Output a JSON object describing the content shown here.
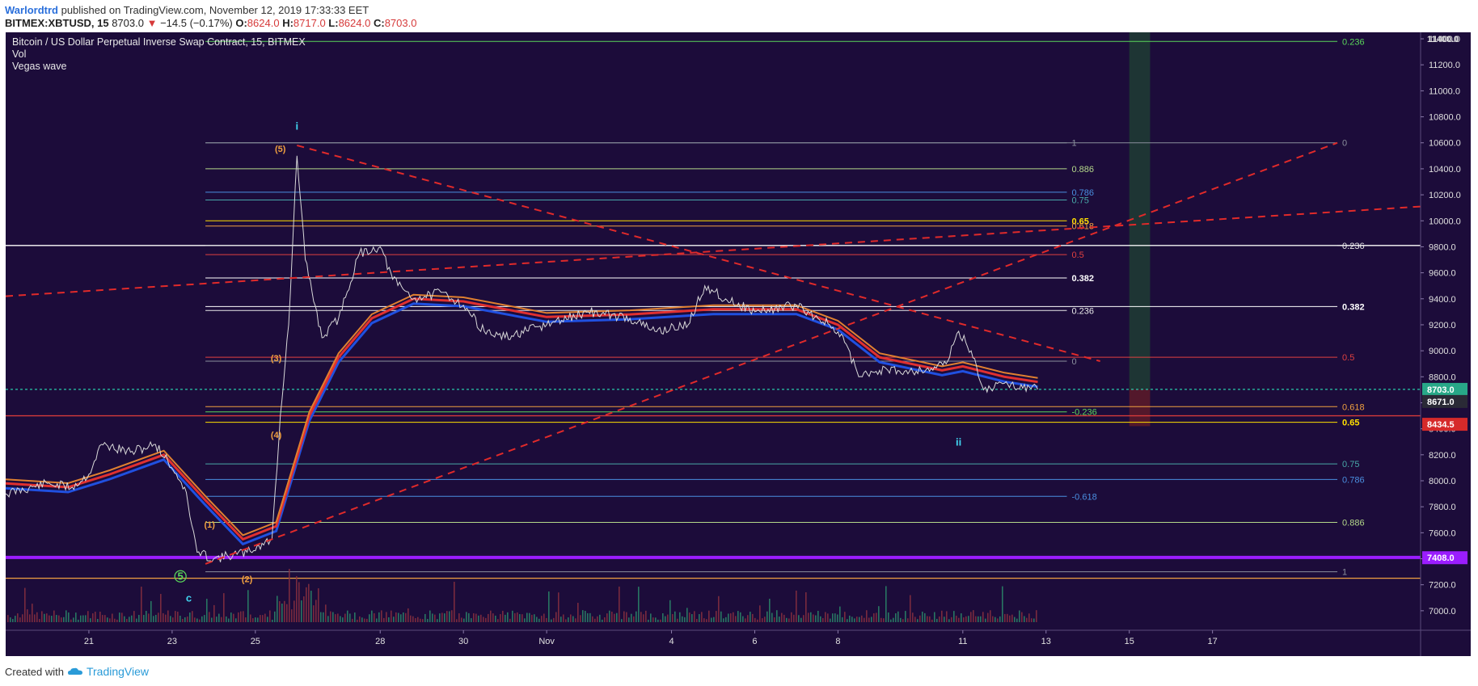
{
  "header": {
    "author": "Warlordtrd",
    "published_text": "published on TradingView.com, November 12, 2019 17:33:33 EET",
    "symbol": "BITMEX:XBTUSD, 15",
    "last": "8703.0",
    "change": "−14.5 (−0.17%)",
    "open_label": "O:",
    "open": "8624.0",
    "high_label": "H:",
    "high": "8717.0",
    "low_label": "L:",
    "low": "8624.0",
    "close_label": "C:",
    "close": "8703.0"
  },
  "legend": {
    "title": "Bitcoin / US Dollar Perpetual Inverse Swap Contract, 15, BITMEX",
    "study1": "Vol",
    "study2": "Vegas wave"
  },
  "footer": {
    "created_with": "Created with",
    "brand": "TradingView"
  },
  "chart_data": {
    "type": "candlestick",
    "ylim": [
      6850,
      11450
    ],
    "xlim": [
      "2019-10-19",
      "2019-11-22"
    ],
    "yticks": [
      7000,
      7200,
      7400,
      7600,
      7800,
      8000,
      8200,
      8400,
      8600,
      8800,
      9000,
      9200,
      9400,
      9600,
      9800,
      10000,
      10200,
      10400,
      10600,
      10800,
      11000,
      11200,
      11400
    ],
    "xticks": [
      {
        "date": "2019-10-21",
        "label": "21"
      },
      {
        "date": "2019-10-23",
        "label": "23"
      },
      {
        "date": "2019-10-25",
        "label": "25"
      },
      {
        "date": "2019-10-28",
        "label": "28"
      },
      {
        "date": "2019-10-30",
        "label": "30"
      },
      {
        "date": "2019-11-01",
        "label": "Nov"
      },
      {
        "date": "2019-11-04",
        "label": "4"
      },
      {
        "date": "2019-11-06",
        "label": "6"
      },
      {
        "date": "2019-11-08",
        "label": "8"
      },
      {
        "date": "2019-11-11",
        "label": "11"
      },
      {
        "date": "2019-11-13",
        "label": "13"
      },
      {
        "date": "2019-11-15",
        "label": "15"
      },
      {
        "date": "2019-11-17",
        "label": "17"
      }
    ],
    "price_path": [
      [
        "2019-10-19",
        7900
      ],
      [
        "2019-10-20",
        7980
      ],
      [
        "2019-10-20.6",
        7950
      ],
      [
        "2019-10-21",
        8050
      ],
      [
        "2019-10-21.3",
        8280
      ],
      [
        "2019-10-22",
        8220
      ],
      [
        "2019-10-22.6",
        8280
      ],
      [
        "2019-10-22.9",
        8150
      ],
      [
        "2019-10-23.3",
        7950
      ],
      [
        "2019-10-23.6",
        7450
      ],
      [
        "2019-10-24",
        7400
      ],
      [
        "2019-10-24.8",
        7450
      ],
      [
        "2019-10-25.4",
        7550
      ],
      [
        "2019-10-25.6",
        8500
      ],
      [
        "2019-10-25.8",
        9200
      ],
      [
        "2019-10-26",
        10500
      ],
      [
        "2019-10-26.2",
        9700
      ],
      [
        "2019-10-26.6",
        9100
      ],
      [
        "2019-10-27",
        9250
      ],
      [
        "2019-10-27.5",
        9750
      ],
      [
        "2019-10-28",
        9800
      ],
      [
        "2019-10-28.3",
        9550
      ],
      [
        "2019-10-28.8",
        9400
      ],
      [
        "2019-10-29.5",
        9450
      ],
      [
        "2019-10-30",
        9350
      ],
      [
        "2019-10-30.5",
        9150
      ],
      [
        "2019-10-31",
        9100
      ],
      [
        "2019-11-01",
        9200
      ],
      [
        "2019-11-02",
        9300
      ],
      [
        "2019-11-03",
        9250
      ],
      [
        "2019-11-03.6",
        9150
      ],
      [
        "2019-11-04.4",
        9200
      ],
      [
        "2019-11-04.8",
        9500
      ],
      [
        "2019-11-05.3",
        9400
      ],
      [
        "2019-11-06",
        9300
      ],
      [
        "2019-11-07",
        9350
      ],
      [
        "2019-11-07.8",
        9200
      ],
      [
        "2019-11-08.2",
        9050
      ],
      [
        "2019-11-08.5",
        8800
      ],
      [
        "2019-11-09",
        8850
      ],
      [
        "2019-11-10",
        8850
      ],
      [
        "2019-11-10.6",
        8900
      ],
      [
        "2019-11-10.9",
        9150
      ],
      [
        "2019-11-11.2",
        9000
      ],
      [
        "2019-11-11.5",
        8700
      ],
      [
        "2019-11-12",
        8750
      ],
      [
        "2019-11-12.6",
        8720
      ],
      [
        "2019-11-12.8",
        8703
      ]
    ],
    "vegas_wave": [
      [
        "2019-10-19",
        7980
      ],
      [
        "2019-10-20.5",
        7950
      ],
      [
        "2019-10-21.5",
        8050
      ],
      [
        "2019-10-22.8",
        8200
      ],
      [
        "2019-10-23.8",
        7850
      ],
      [
        "2019-10-24.7",
        7550
      ],
      [
        "2019-10-25.5",
        7650
      ],
      [
        "2019-10-26.3",
        8500
      ],
      [
        "2019-10-27",
        8950
      ],
      [
        "2019-10-27.8",
        9250
      ],
      [
        "2019-10-28.8",
        9400
      ],
      [
        "2019-10-30",
        9380
      ],
      [
        "2019-11-01",
        9260
      ],
      [
        "2019-11-03",
        9280
      ],
      [
        "2019-11-05",
        9320
      ],
      [
        "2019-11-07",
        9320
      ],
      [
        "2019-11-08",
        9200
      ],
      [
        "2019-11-09",
        8950
      ],
      [
        "2019-11-10.5",
        8850
      ],
      [
        "2019-11-11",
        8880
      ],
      [
        "2019-11-12",
        8800
      ],
      [
        "2019-11-12.8",
        8760
      ]
    ],
    "fib_left": {
      "x_start": "2019-10-23.8",
      "x_end": "2019-11-13.5",
      "levels": [
        {
          "label": "1",
          "price": 10600,
          "color": "#8a8f9c"
        },
        {
          "label": "0.886",
          "price": 10400,
          "color": "#b5d98a"
        },
        {
          "label": "0.786",
          "price": 10220,
          "color": "#4a8fe0"
        },
        {
          "label": "0.75",
          "price": 10160,
          "color": "#48a8a8"
        },
        {
          "label": "0.65",
          "price": 10000,
          "color": "#ffe000"
        },
        {
          "label": "0.618",
          "price": 9960,
          "color": "#f0a040"
        },
        {
          "label": "0.5",
          "price": 9740,
          "color": "#e04040"
        },
        {
          "label": "0.382",
          "price": 9560,
          "color": "#ffffff"
        },
        {
          "label": "0.236",
          "price": 9310,
          "color": "#e8e8e8"
        },
        {
          "label": "0",
          "price": 8920,
          "color": "#8a8f9c"
        },
        {
          "label": "-0.236",
          "price": 8530,
          "color": "#5ad65a"
        },
        {
          "label": "-0.618",
          "price": 7880,
          "color": "#4a8fe0"
        }
      ]
    },
    "fib_right": {
      "x_start": "2019-10-23.8",
      "x_end": "2019-11-20",
      "levels": [
        {
          "label": "0.236",
          "price": 11380,
          "color": "#5ad65a"
        },
        {
          "label": "0",
          "price": 10600,
          "color": "#8a8f9c"
        },
        {
          "label": "0.236",
          "price": 9810,
          "color": "#e8e8e8"
        },
        {
          "label": "0.382",
          "price": 9340,
          "color": "#ffffff"
        },
        {
          "label": "0.5",
          "price": 8950,
          "color": "#e04040"
        },
        {
          "label": "0.618",
          "price": 8570,
          "color": "#f0a040"
        },
        {
          "label": "0.65",
          "price": 8450,
          "color": "#ffe000"
        },
        {
          "label": "0.75",
          "price": 8130,
          "color": "#48a8a8"
        },
        {
          "label": "0.786",
          "price": 8010,
          "color": "#4a8fe0"
        },
        {
          "label": "0.886",
          "price": 7680,
          "color": "#b5d98a"
        },
        {
          "label": "1",
          "price": 7300,
          "color": "#8a8f9c"
        }
      ]
    },
    "trend_lines": [
      {
        "from": [
          "2019-10-19",
          9420
        ],
        "to": [
          "2019-11-22",
          10110
        ]
      },
      {
        "from": [
          "2019-10-26",
          10580
        ],
        "to": [
          "2019-11-14.3",
          8920
        ]
      },
      {
        "from": [
          "2019-10-23.8",
          7360
        ],
        "to": [
          "2019-11-20",
          10600
        ]
      }
    ],
    "full_lines": [
      {
        "price": 9810,
        "color": "#ffffff"
      },
      {
        "price": 8500,
        "color": "#d63a3a"
      },
      {
        "price": 7410,
        "color": "#9b1dff"
      },
      {
        "price": 7250,
        "color": "#f0a040"
      },
      {
        "price": 8703,
        "color": "#28c8a8",
        "dashed": true
      }
    ],
    "wave_labels": [
      {
        "text": "i",
        "date": "2019-10-26",
        "price": 10700,
        "color": "#40d4f0"
      },
      {
        "text": "(5)",
        "date": "2019-10-25.6",
        "price": 10530,
        "color": "#f0a040"
      },
      {
        "text": "(3)",
        "date": "2019-10-25.5",
        "price": 8920,
        "color": "#f0a040"
      },
      {
        "text": "(4)",
        "date": "2019-10-25.5",
        "price": 8330,
        "color": "#f0a040"
      },
      {
        "text": "(1)",
        "date": "2019-10-23.9",
        "price": 7640,
        "color": "#f0a040"
      },
      {
        "text": "(2)",
        "date": "2019-10-24.8",
        "price": 7220,
        "color": "#f0a040"
      },
      {
        "text": "5",
        "date": "2019-10-23.2",
        "price": 7240,
        "color": "#5ad65a",
        "circle": true
      },
      {
        "text": "c",
        "date": "2019-10-23.4",
        "price": 7070,
        "color": "#40d4f0"
      },
      {
        "text": "ii",
        "date": "2019-11-10.9",
        "price": 8270,
        "color": "#40d4f0"
      }
    ],
    "price_tags": [
      {
        "text": "11400.0",
        "price": 11400,
        "bg": "transparent",
        "fg": "#e0e0e0"
      },
      {
        "text": "8703.0",
        "price": 8703,
        "bg": "#28a888",
        "fg": "#ffffff"
      },
      {
        "text": "8671.0",
        "price": 8610,
        "bg": "#2a2a36",
        "fg": "#ffffff"
      },
      {
        "text": "8434.5",
        "price": 8434.5,
        "bg": "#d62a2a",
        "fg": "#ffffff"
      },
      {
        "text": "7408.0",
        "price": 7408,
        "bg": "#9b1dff",
        "fg": "#ffffff"
      }
    ],
    "position_box": {
      "x_start": "2019-11-15",
      "x_end": "2019-11-15.5",
      "target": 11450,
      "entry": 8703,
      "stop": 8420
    }
  }
}
